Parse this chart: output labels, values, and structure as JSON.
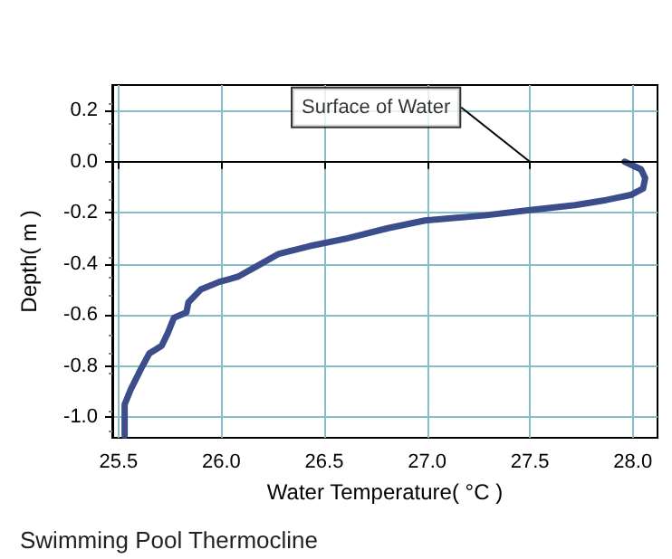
{
  "chart_data": {
    "type": "line",
    "title": "Swimming Pool Thermocline",
    "xlabel": "Water Temperature( °C )",
    "ylabel": "Depth( m )",
    "xlim": [
      25.47,
      28.12
    ],
    "ylim": [
      -1.08,
      0.3
    ],
    "xticks": [
      25.5,
      {
        "value": 26,
        "label": "26.0"
      },
      26.5,
      {
        "value": 27,
        "label": "27.0"
      },
      27.5,
      {
        "value": 28,
        "label": "28.0"
      }
    ],
    "yticks": [
      0.2,
      {
        "value": 0,
        "label": "0.0"
      },
      -0.2,
      -0.4,
      -0.6,
      -0.8,
      {
        "value": -1,
        "label": "-1.0"
      }
    ],
    "series": [
      {
        "color": "#3c4d8c",
        "x": [
          27.96,
          28.04,
          28.06,
          28.05,
          27.99,
          27.87,
          27.72,
          27.49,
          27.28,
          26.99,
          26.81,
          26.61,
          26.43,
          26.28,
          26.17,
          26.08,
          25.99,
          25.9,
          25.84,
          25.83,
          25.77,
          25.74,
          25.71,
          25.65,
          25.61,
          25.56,
          25.53,
          25.53,
          25.53
        ],
        "values": [
          0,
          -0.03,
          -0.064,
          -0.105,
          -0.13,
          -0.15,
          -0.17,
          -0.19,
          -0.21,
          -0.23,
          -0.26,
          -0.3,
          -0.33,
          -0.36,
          -0.41,
          -0.45,
          -0.47,
          -0.5,
          -0.55,
          -0.59,
          -0.61,
          -0.67,
          -0.72,
          -0.75,
          -0.81,
          -0.89,
          -0.95,
          -1.0,
          -1.07
        ]
      }
    ],
    "ref_lines": [
      {
        "axis": "y",
        "value": 0,
        "color": "#000000"
      }
    ],
    "annotations": [
      {
        "text": "Surface of Water",
        "x": 27.5,
        "y": 0
      }
    ],
    "grid": true,
    "marker": "none",
    "line_style": "solid"
  }
}
